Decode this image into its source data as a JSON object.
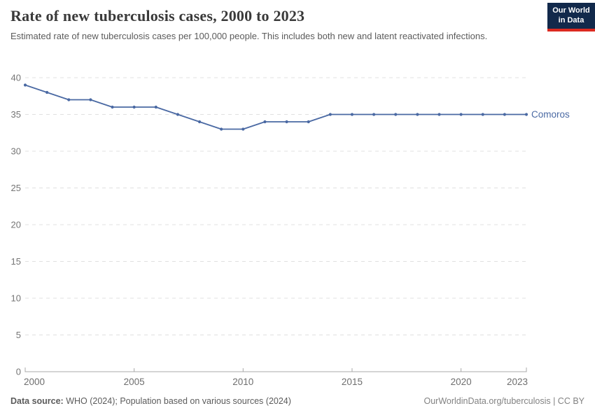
{
  "header": {
    "title": "Rate of new tuberculosis cases, 2000 to 2023",
    "subtitle": "Estimated rate of new tuberculosis cases per 100,000 people. This includes both new and latent reactivated infections.",
    "logo": {
      "line1": "Our World",
      "line2": "in Data"
    }
  },
  "chart_data": {
    "type": "line",
    "title": "Rate of new tuberculosis cases, 2000 to 2023",
    "xlabel": "",
    "ylabel": "",
    "x": [
      2000,
      2001,
      2002,
      2003,
      2004,
      2005,
      2006,
      2007,
      2008,
      2009,
      2010,
      2011,
      2012,
      2013,
      2014,
      2015,
      2016,
      2017,
      2018,
      2019,
      2020,
      2021,
      2022,
      2023
    ],
    "series": [
      {
        "name": "Comoros",
        "color": "#4a69a3",
        "values": [
          39,
          38,
          37,
          37,
          36,
          36,
          36,
          35,
          34,
          33,
          33,
          34,
          34,
          34,
          35,
          35,
          35,
          35,
          35,
          35,
          35,
          35,
          35,
          35
        ]
      }
    ],
    "ylim": [
      0,
      40
    ],
    "yticks": [
      0,
      5,
      10,
      15,
      20,
      25,
      30,
      35,
      40
    ],
    "xticks": [
      2000,
      2005,
      2010,
      2015,
      2020,
      2023
    ],
    "grid": "horizontal-dashed",
    "legend_position": "end-of-line-label"
  },
  "footer": {
    "source_label": "Data source:",
    "source_text": "WHO (2024); Population based on various sources (2024)",
    "link": "OurWorldinData.org/tuberculosis | CC BY"
  },
  "colors": {
    "line": "#4a69a3",
    "gridline": "#e0e0e0",
    "axis": "#a8a8a8",
    "axis_label": "#757575",
    "logo_bg": "#12294b",
    "logo_accent": "#dc2a20"
  }
}
